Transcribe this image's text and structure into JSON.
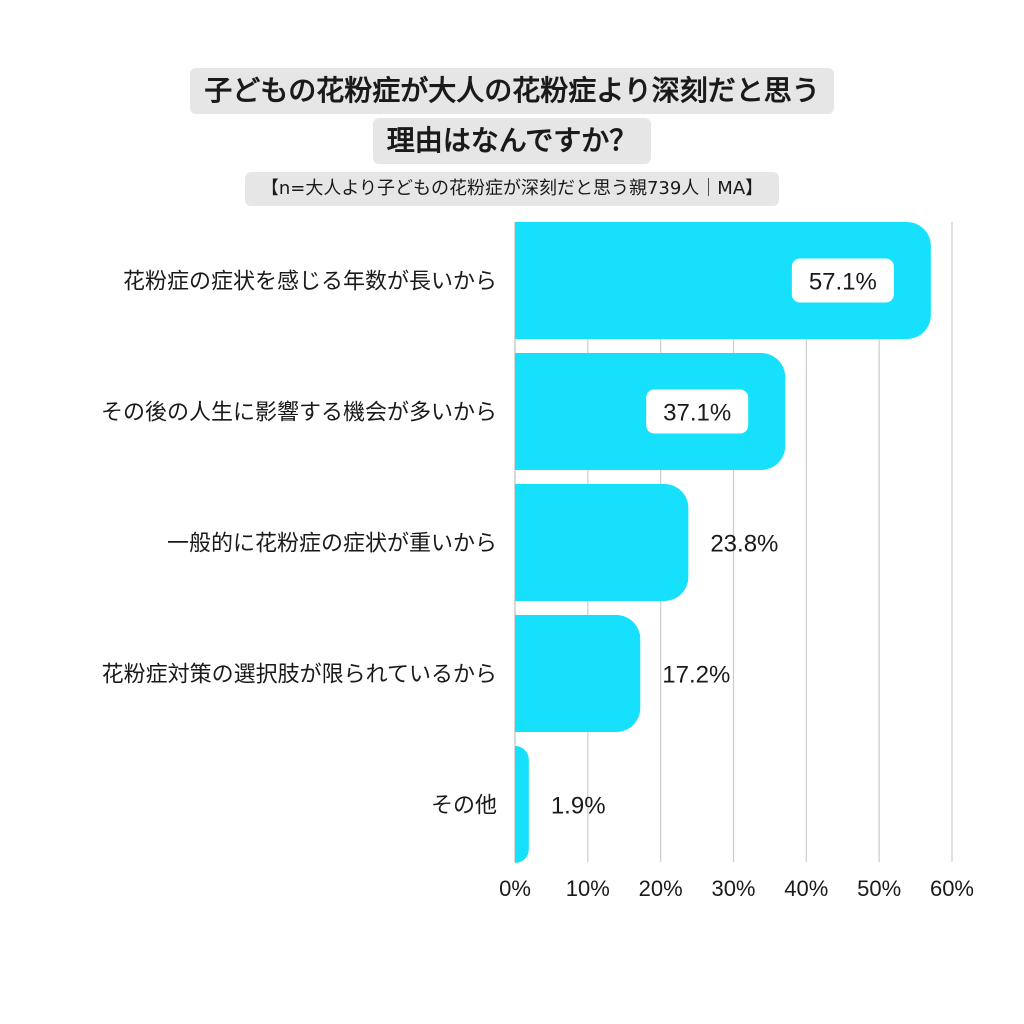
{
  "chart_data": {
    "type": "bar",
    "orientation": "horizontal",
    "title_lines": [
      "子どもの花粉症が大人の花粉症より深刻だと思う",
      "理由はなんですか？"
    ],
    "subtitle": "【n=大人より子どもの花粉症が深刻だと思う親739人｜MA】",
    "categories": [
      "花粉症の症状を感じる年数が長いから",
      "その後の人生に影響する機会が多いから",
      "一般的に花粉症の症状が重いから",
      "花粉症対策の選択肢が限られているから",
      "その他"
    ],
    "values": [
      57.1,
      37.1,
      23.8,
      17.2,
      1.9
    ],
    "value_labels": [
      "57.1%",
      "37.1%",
      "23.8%",
      "17.2%",
      "1.9%"
    ],
    "xlim": [
      0,
      60
    ],
    "x_ticks": [
      0,
      10,
      20,
      30,
      40,
      50,
      60
    ],
    "x_tick_labels": [
      "0%",
      "10%",
      "20%",
      "30%",
      "40%",
      "50%",
      "60%"
    ],
    "grid": true,
    "legend": "none",
    "colors": {
      "bar": "#16e0fb",
      "grid": "#cccccc",
      "label_box": "#ffffff"
    }
  }
}
